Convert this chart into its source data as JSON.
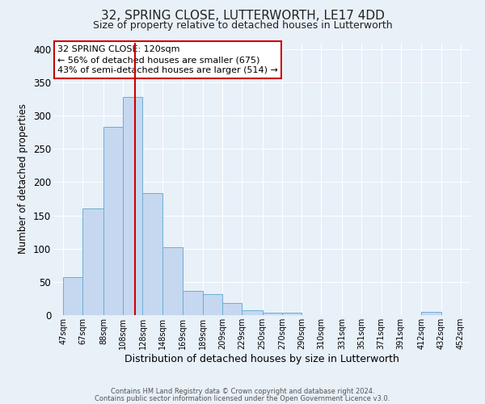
{
  "title1": "32, SPRING CLOSE, LUTTERWORTH, LE17 4DD",
  "title2": "Size of property relative to detached houses in Lutterworth",
  "xlabel": "Distribution of detached houses by size in Lutterworth",
  "ylabel": "Number of detached properties",
  "bar_left_edges": [
    47,
    67,
    88,
    108,
    128,
    148,
    169,
    189,
    209,
    229,
    250,
    270,
    290,
    310,
    331,
    351,
    371,
    391,
    412,
    432
  ],
  "bar_widths": [
    20,
    21,
    20,
    20,
    20,
    21,
    20,
    20,
    20,
    21,
    20,
    20,
    20,
    21,
    20,
    20,
    20,
    21,
    20,
    20
  ],
  "bar_heights": [
    57,
    160,
    283,
    328,
    184,
    102,
    37,
    32,
    18,
    7,
    4,
    4,
    0,
    0,
    0,
    0,
    0,
    0,
    5,
    0
  ],
  "x_tick_labels": [
    "47sqm",
    "67sqm",
    "88sqm",
    "108sqm",
    "128sqm",
    "148sqm",
    "169sqm",
    "189sqm",
    "209sqm",
    "229sqm",
    "250sqm",
    "270sqm",
    "290sqm",
    "310sqm",
    "331sqm",
    "351sqm",
    "371sqm",
    "391sqm",
    "412sqm",
    "432sqm",
    "452sqm"
  ],
  "x_tick_positions": [
    47,
    67,
    88,
    108,
    128,
    148,
    169,
    189,
    209,
    229,
    250,
    270,
    290,
    310,
    331,
    351,
    371,
    391,
    412,
    432,
    452
  ],
  "ylim": [
    0,
    410
  ],
  "xlim": [
    37,
    462
  ],
  "bar_color": "#c5d8f0",
  "bar_edge_color": "#6baed6",
  "red_line_x": 120,
  "annotation_title": "32 SPRING CLOSE: 120sqm",
  "annotation_line1": "← 56% of detached houses are smaller (675)",
  "annotation_line2": "43% of semi-detached houses are larger (514) →",
  "annotation_box_color": "#ffffff",
  "annotation_box_edge_color": "#cc0000",
  "footer_line1": "Contains HM Land Registry data © Crown copyright and database right 2024.",
  "footer_line2": "Contains public sector information licensed under the Open Government Licence v3.0.",
  "background_color": "#e8f0f8",
  "grid_color": "#ffffff",
  "title1_fontsize": 11,
  "title2_fontsize": 9,
  "ylabel_fontsize": 8.5,
  "xlabel_fontsize": 9,
  "annotation_fontsize": 8,
  "ytick_fontsize": 8.5,
  "xtick_fontsize": 7
}
